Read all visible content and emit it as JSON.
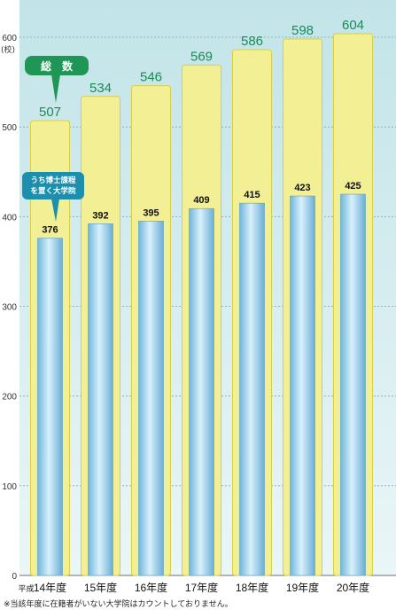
{
  "chart_data": {
    "type": "bar",
    "unit_label": "(校)",
    "categories_prefix": "平成",
    "categories": [
      "14年度",
      "15年度",
      "16年度",
      "17年度",
      "18年度",
      "19年度",
      "20年度"
    ],
    "series": [
      {
        "name": "総　数",
        "values": [
          507,
          534,
          546,
          569,
          586,
          598,
          604
        ]
      },
      {
        "name_lines": [
          "うち博士課程",
          "を置く大学院"
        ],
        "values": [
          376,
          392,
          395,
          409,
          415,
          423,
          425
        ]
      }
    ],
    "ylim": [
      0,
      600
    ],
    "yticks": [
      0,
      100,
      200,
      300,
      400,
      500,
      600
    ],
    "grid": true,
    "legend": "callouts-on-first-bar",
    "note": "※当該年度に在籍者がいない大学院はカウントしておりません。"
  },
  "colors": {
    "background": "#daeef0",
    "total_bar": "#f3ef94",
    "total_border": "#d8cf49",
    "doctoral_bar": "#79bcdf",
    "doctoral_bar_light": "#d7eef9",
    "total_label": "#1a8a55",
    "legend_total": "#1f9655",
    "legend_doctoral": "#1d8fae"
  }
}
